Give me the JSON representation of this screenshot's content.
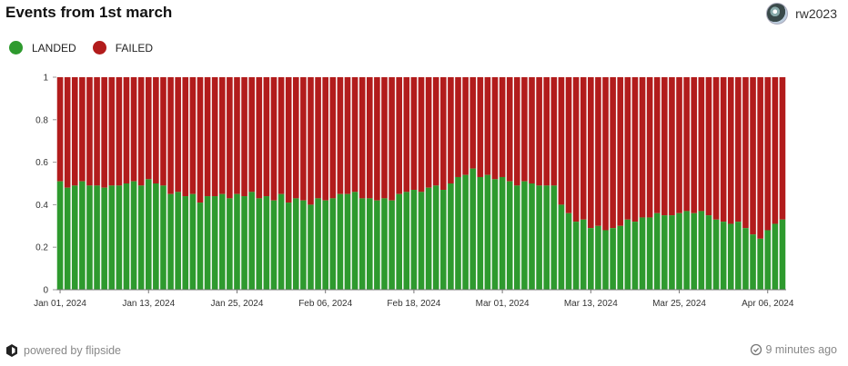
{
  "header": {
    "title": "Events from 1st march",
    "user_name": "rw2023",
    "avatar_icon": "avatar-icon"
  },
  "footer": {
    "powered_by": "powered by flipside",
    "updated": "9 minutes ago",
    "brand_icon": "flipside-logo-icon",
    "clock_icon": "clock-check-icon"
  },
  "colors": {
    "landed": "#2e9a2e",
    "failed": "#b21c1c"
  },
  "chart_data": {
    "type": "bar",
    "stacked": true,
    "title": "Events from 1st march",
    "ylim": [
      0,
      1
    ],
    "y_ticks": [
      "0",
      "0.2",
      "0.4",
      "0.6",
      "0.8",
      "1"
    ],
    "x_tick_labels": [
      "Jan 01, 2024",
      "Jan 13, 2024",
      "Jan 25, 2024",
      "Feb 06, 2024",
      "Feb 18, 2024",
      "Mar 01, 2024",
      "Mar 13, 2024",
      "Mar 25, 2024",
      "Apr 06, 2024"
    ],
    "x_start": "2024-01-01",
    "x_end": "2024-04-08",
    "legend_position": "top-left",
    "series": [
      {
        "name": "LANDED",
        "color": "#2e9a2e",
        "values": [
          0.51,
          0.48,
          0.49,
          0.51,
          0.49,
          0.49,
          0.48,
          0.49,
          0.49,
          0.5,
          0.51,
          0.49,
          0.52,
          0.5,
          0.49,
          0.45,
          0.46,
          0.44,
          0.45,
          0.41,
          0.44,
          0.44,
          0.45,
          0.43,
          0.45,
          0.44,
          0.46,
          0.43,
          0.44,
          0.42,
          0.45,
          0.41,
          0.43,
          0.42,
          0.4,
          0.43,
          0.42,
          0.43,
          0.45,
          0.45,
          0.46,
          0.43,
          0.43,
          0.42,
          0.43,
          0.42,
          0.45,
          0.46,
          0.47,
          0.46,
          0.48,
          0.49,
          0.47,
          0.5,
          0.53,
          0.54,
          0.57,
          0.53,
          0.54,
          0.52,
          0.53,
          0.51,
          0.49,
          0.51,
          0.5,
          0.49,
          0.49,
          0.49,
          0.4,
          0.36,
          0.32,
          0.33,
          0.29,
          0.3,
          0.28,
          0.29,
          0.3,
          0.33,
          0.32,
          0.34,
          0.34,
          0.36,
          0.35,
          0.35,
          0.36,
          0.37,
          0.36,
          0.37,
          0.35,
          0.33,
          0.32,
          0.31,
          0.32,
          0.29,
          0.26,
          0.24,
          0.28,
          0.31,
          0.33
        ]
      },
      {
        "name": "FAILED",
        "color": "#b21c1c",
        "values_note": ""
      }
    ]
  }
}
